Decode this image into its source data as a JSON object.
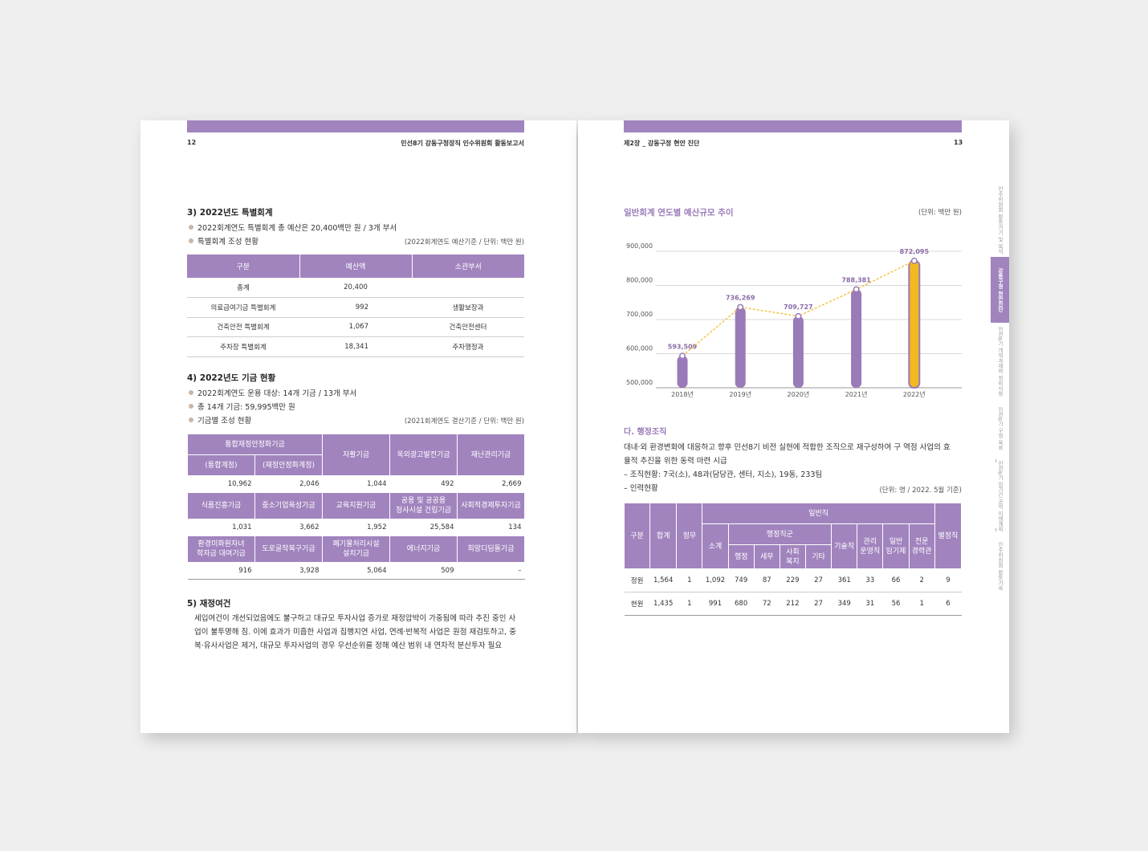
{
  "left_page": {
    "page_number": "12",
    "running_title": "민선8기 강동구청장직 인수위원회 활동보고서",
    "section3": {
      "title": "3) 2022년도 특별회계",
      "bullets": [
        "2022회계연도 특별회계 총 예산은 20,400백만 원 / 3개 부서",
        "특별회계 조성 현황"
      ],
      "note": "(2022회계연도 예산기준 / 단위: 백만 원)",
      "table": {
        "headers": [
          "구분",
          "예산액",
          "소관부서"
        ],
        "rows": [
          [
            "총계",
            "20,400",
            ""
          ],
          [
            "의료급여기금 특별회계",
            "992",
            "생활보장과"
          ],
          [
            "건축안전 특별회계",
            "1,067",
            "건축안전센터"
          ],
          [
            "주차장 특별회계",
            "18,341",
            "주차행정과"
          ]
        ]
      }
    },
    "section4": {
      "title": "4) 2022년도 기금 현황",
      "bullets": [
        "2022회계연도 운용 대상: 14개 기금 / 13개 부서",
        "총 14개 기금: 59,995백만 원",
        "기금별 조성 현황"
      ],
      "note": "(2021회계연도 결산기준 / 단위: 백만 원)",
      "table": {
        "group_header": "통합재정안정화기금",
        "row1_headers": [
          "(통합계정)",
          "(재정안정화계정)",
          "자활기금",
          "옥외광고발전기금",
          "재난관리기금"
        ],
        "row1_values": [
          "10,962",
          "2,046",
          "1,044",
          "492",
          "2,669"
        ],
        "row2_headers": [
          "식품진흥기금",
          "중소기업육성기금",
          "교육지원기금",
          "공용 및 공공용\n청사시설 건립기금",
          "사회적경제투자기금"
        ],
        "row2_values": [
          "1,031",
          "3,662",
          "1,952",
          "25,584",
          "134"
        ],
        "row3_headers": [
          "환경미화원자녀\n학자금 대여기금",
          "도로굴착복구기금",
          "폐기물처리시설\n설치기금",
          "에너지기금",
          "희망디딤돌기금"
        ],
        "row3_values": [
          "916",
          "3,928",
          "5,064",
          "509",
          "–"
        ]
      }
    },
    "section5": {
      "title": "5) 재정여건",
      "lines": [
        "세입여건이 개선되었음에도 불구하고 대규모 투자사업 증가로 재정압박이 가중됨에 따라 추진 중인 사",
        "업이 불투명해 짐. 이에 효과가 미흡한 사업과 집행지연 사업, 연례·반복적 사업은 원점 재검토하고, 중",
        "복·유사사업은 제거, 대규모 투자사업의 경우 우선순위를 정해 예산 범위 내 연차적 분산투자 필요"
      ]
    }
  },
  "right_page": {
    "running_title": "제2장 _ 강동구정 현안 진단",
    "page_number": "13",
    "chart_title": "일반회계 연도별 예산규모 추이",
    "chart_unit": "(단위: 백만 원)",
    "section_da": {
      "title": "다. 행정조직",
      "lines": [
        "대내·외 환경변화에 대응하고 향후 민선8기 비전 실현에 적합한 조직으로 재구성하여 구 역점 사업의 효",
        "율적 추진을 위한 동력 마련 시급",
        "– 조직현황: 7국(소), 48과(담당관, 센터, 지소), 19동, 233팀",
        "– 인력현황"
      ],
      "note": "(단위: 명 / 2022. 5월 기준)",
      "table": {
        "h_gubun": "구분",
        "h_total": "합계",
        "h_jeongmu": "정무",
        "h_ilbanjik": "일반직",
        "h_sogye": "소계",
        "h_haengjeong": "행정직군",
        "h_sub": [
          "행정",
          "세무",
          "사회\n복지",
          "기타"
        ],
        "h_gisul": "기술직",
        "h_gwanri": "관리\n운영직",
        "h_ilban_im": "일반\n임기제",
        "h_jeonmun": "전문\n경력관",
        "h_byeol": "별정직",
        "rows": [
          [
            "정원",
            "1,564",
            "1",
            "1,092",
            "749",
            "87",
            "229",
            "27",
            "361",
            "33",
            "66",
            "2",
            "9"
          ],
          [
            "현원",
            "1,435",
            "1",
            "991",
            "680",
            "72",
            "212",
            "27",
            "349",
            "31",
            "56",
            "1",
            "6"
          ]
        ]
      }
    }
  },
  "chart_data": {
    "type": "bar",
    "title": "일반회계 연도별 예산규모 추이",
    "unit": "(단위: 백만 원)",
    "categories": [
      "2018년",
      "2019년",
      "2020년",
      "2021년",
      "2022년"
    ],
    "values": [
      593509,
      736269,
      709727,
      788381,
      872095
    ],
    "value_labels": [
      "593,509",
      "736,269",
      "709,727",
      "788,381",
      "872,095"
    ],
    "ylim": [
      500000,
      900000
    ],
    "yticks": [
      500000,
      600000,
      700000,
      800000,
      900000
    ],
    "ytick_labels": [
      "500,000",
      "600,000",
      "700,000",
      "800,000",
      "900,000"
    ],
    "grid": true,
    "colors": {
      "bar": "#9a7ab8",
      "highlight": "#f3b81f",
      "trend_line": "#f3b81f",
      "value_label": "#8a6aa8"
    }
  },
  "side_tabs": [
    "인수위원회 활동가기 및 목적",
    "강동구정 현안진단",
    "민선8기 개혁과제와 정비사항",
    "민선8기 구정 목표",
    "민선8기 임기간 공약 이행계획",
    "인수위원회 활동기록"
  ],
  "colors": {
    "accent": "#a184be",
    "bullet": "#c9b6a8"
  }
}
